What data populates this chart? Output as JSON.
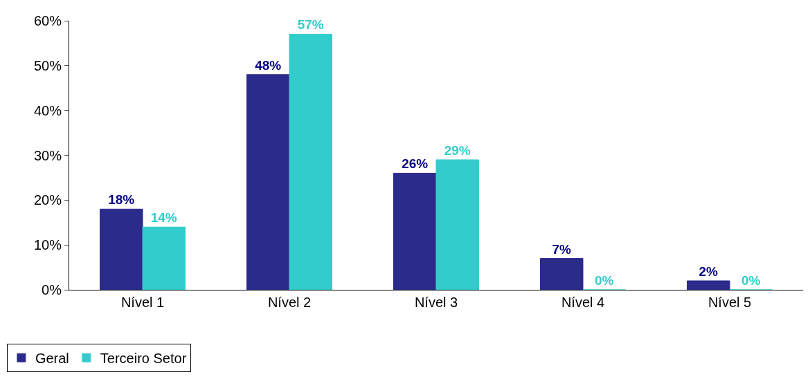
{
  "chart_data": {
    "type": "bar",
    "categories": [
      "Nível 1",
      "Nível 2",
      "Nível 3",
      "Nível 4",
      "Nível 5"
    ],
    "series": [
      {
        "name": "Geral",
        "color": "#2b2b8c",
        "values": [
          18,
          48,
          26,
          7,
          2
        ],
        "value_labels": [
          "18%",
          "48%",
          "26%",
          "7%",
          "2%"
        ]
      },
      {
        "name": "Terceiro Setor",
        "color": "#33cccc",
        "values": [
          14,
          57,
          29,
          0,
          0
        ],
        "value_labels": [
          "14%",
          "57%",
          "29%",
          "0%",
          "0%"
        ]
      }
    ],
    "ylim": [
      0,
      60
    ],
    "yticks": [
      {
        "value": 0,
        "label": "0%"
      },
      {
        "value": 10,
        "label": "10%"
      },
      {
        "value": 20,
        "label": "20%"
      },
      {
        "value": 30,
        "label": "30%"
      },
      {
        "value": 40,
        "label": "40%"
      },
      {
        "value": 50,
        "label": "50%"
      },
      {
        "value": 60,
        "label": "60%"
      }
    ],
    "grid": false,
    "legend": "bottom left"
  }
}
